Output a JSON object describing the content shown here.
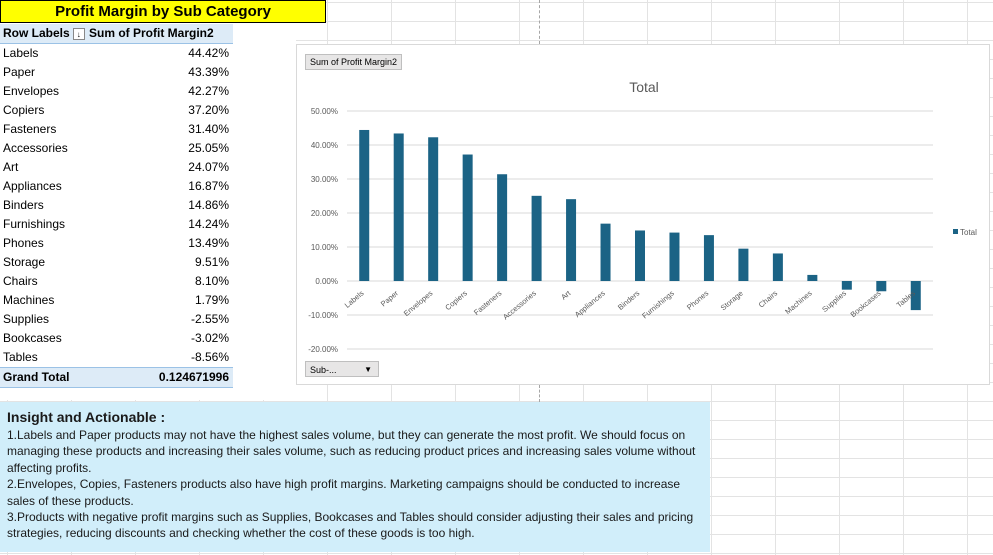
{
  "sheet": {
    "title": "Profit Margin by Sub Category",
    "pivot": {
      "header_row_labels": "Row Labels",
      "header_value": "Sum of Profit Margin2",
      "rows": [
        {
          "label": "Labels",
          "value": "44.42%"
        },
        {
          "label": "Paper",
          "value": "43.39%"
        },
        {
          "label": "Envelopes",
          "value": "42.27%"
        },
        {
          "label": "Copiers",
          "value": "37.20%"
        },
        {
          "label": "Fasteners",
          "value": "31.40%"
        },
        {
          "label": "Accessories",
          "value": "25.05%"
        },
        {
          "label": "Art",
          "value": "24.07%"
        },
        {
          "label": "Appliances",
          "value": "16.87%"
        },
        {
          "label": "Binders",
          "value": "14.86%"
        },
        {
          "label": "Furnishings",
          "value": "14.24%"
        },
        {
          "label": "Phones",
          "value": "13.49%"
        },
        {
          "label": "Storage",
          "value": "9.51%"
        },
        {
          "label": "Chairs",
          "value": "8.10%"
        },
        {
          "label": "Machines",
          "value": "1.79%"
        },
        {
          "label": "Supplies",
          "value": "-2.55%"
        },
        {
          "label": "Bookcases",
          "value": "-3.02%"
        },
        {
          "label": "Tables",
          "value": "-8.56%"
        }
      ],
      "total_label": "Grand Total",
      "total_value": "0.124671996"
    },
    "insight": {
      "heading": "Insight and Actionable :",
      "points": [
        "1.Labels and Paper products may not have the highest sales volume, but they can generate the most profit. We should focus on managing these products and increasing their sales volume, such as reducing product prices and increasing sales volume without affecting profits.",
        "2.Envelopes, Copies, Fasteners products also have high profit margins. Marketing campaigns should be conducted to increase sales of these products.",
        "3.Products with negative profit margins such as Supplies, Bookcases and Tables should consider adjusting their sales and pricing strategies, reducing discounts and checking whether the cost of these goods is too high."
      ]
    }
  },
  "chart_ui": {
    "field_button": "Sum of Profit Margin2",
    "filter_button": "Sub-...",
    "bar_color": "#1b6385"
  },
  "chart_data": {
    "type": "bar",
    "title": "Total",
    "categories": [
      "Labels",
      "Paper",
      "Envelopes",
      "Copiers",
      "Fasteners",
      "Accessories",
      "Art",
      "Appliances",
      "Binders",
      "Furnishings",
      "Phones",
      "Storage",
      "Chairs",
      "Machines",
      "Supplies",
      "Bookcases",
      "Tables"
    ],
    "series": [
      {
        "name": "Total",
        "values": [
          44.42,
          43.39,
          42.27,
          37.2,
          31.4,
          25.05,
          24.07,
          16.87,
          14.86,
          14.24,
          13.49,
          9.51,
          8.1,
          1.79,
          -2.55,
          -3.02,
          -8.56
        ]
      }
    ],
    "ylim": [
      -20,
      50
    ],
    "yticks": [
      "-20.00%",
      "-10.00%",
      "0.00%",
      "10.00%",
      "20.00%",
      "30.00%",
      "40.00%",
      "50.00%"
    ],
    "legend": "right",
    "grid": true
  }
}
